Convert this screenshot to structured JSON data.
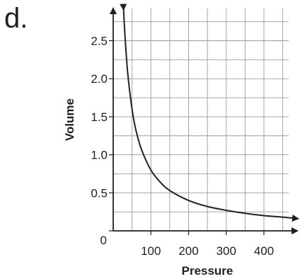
{
  "panel_label": "d.",
  "chart_data": {
    "type": "line",
    "title": "",
    "xlabel": "Pressure",
    "ylabel": "Volume",
    "xlim": [
      0,
      490
    ],
    "ylim": [
      0,
      2.9
    ],
    "x_ticks": [
      100,
      200,
      300,
      400
    ],
    "x_tick_labels": [
      "100",
      "200",
      "300",
      "400"
    ],
    "y_ticks": [
      0,
      0.5,
      1.0,
      1.5,
      2.0,
      2.5
    ],
    "y_tick_labels": [
      "0",
      "0.5",
      "1.0",
      "1.5",
      "2.0",
      "2.5"
    ],
    "grid": true,
    "grid_x_step": 50,
    "grid_y_step": 0.25,
    "series": [
      {
        "x": [
          27.5,
          30,
          35,
          40,
          50,
          60,
          75,
          100,
          125,
          150,
          200,
          250,
          300,
          350,
          400,
          450,
          490
        ],
        "y": [
          2.91,
          2.67,
          2.29,
          2.0,
          1.6,
          1.33,
          1.07,
          0.8,
          0.64,
          0.53,
          0.4,
          0.32,
          0.27,
          0.23,
          0.2,
          0.18,
          0.16
        ]
      }
    ]
  }
}
